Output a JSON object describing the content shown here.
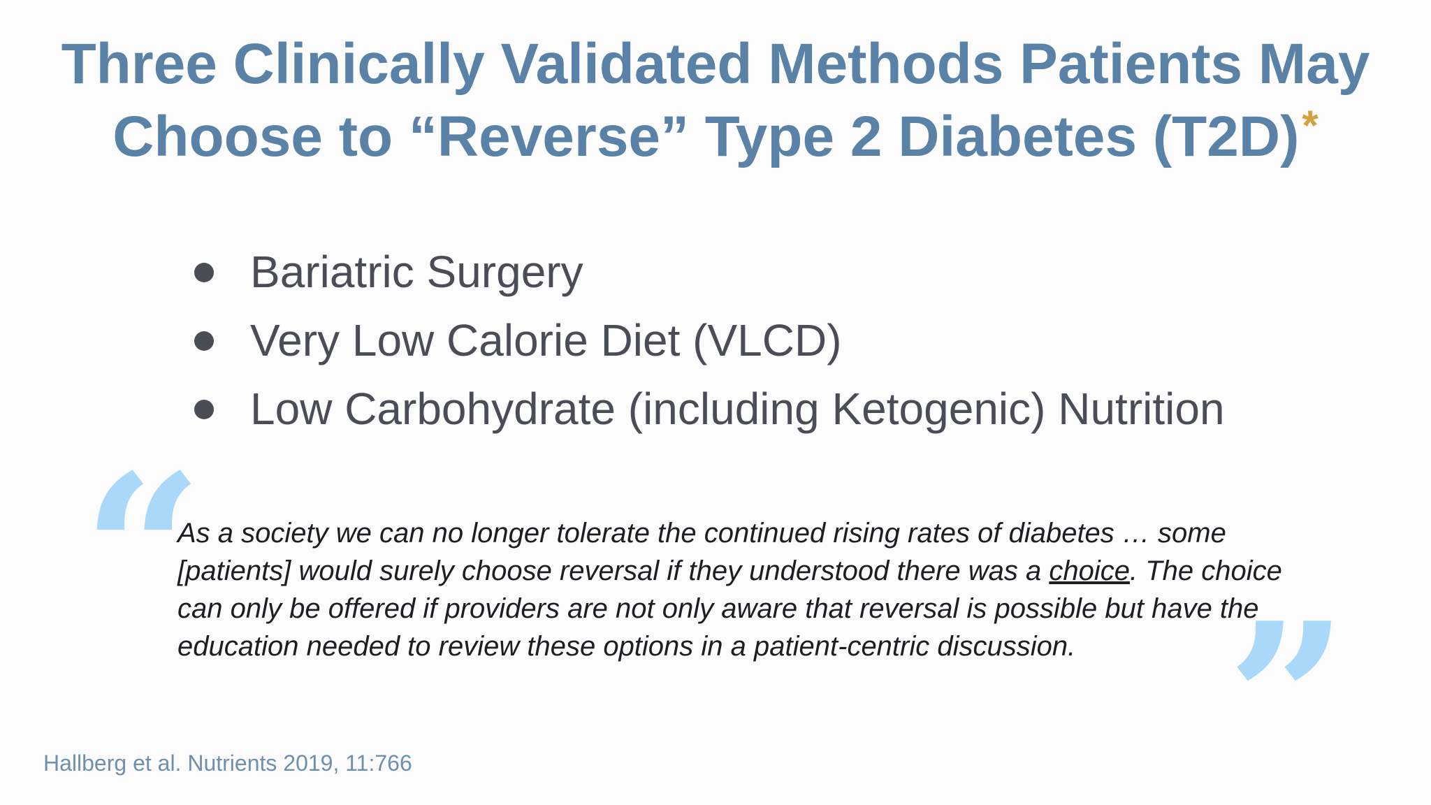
{
  "title": {
    "line1": "Three Clinically Validated Methods Patients May",
    "line2": "Choose to “Reverse” Type 2 Diabetes (T2D)",
    "asterisk": "*"
  },
  "methods": [
    "Bariatric Surgery",
    "Very Low Calorie Diet (VLCD)",
    "Low Carbohydrate (including Ketogenic) Nutrition"
  ],
  "quote": {
    "open_mark": "“",
    "close_mark": "”",
    "before_emphasis": "As a society we can no longer tolerate the continued rising rates of diabetes … some [patients] would surely choose reversal if they understood there was a ",
    "emphasis": "choice",
    "after_emphasis": ". The choice can only be offered if providers are not only aware that reversal is possible but have the education needed to review these options in a patient-centric discussion."
  },
  "citation": "Hallberg et al. Nutrients 2019, 11:766",
  "colors": {
    "title": "#5a82a6",
    "asterisk": "#d4a23c",
    "quote_marks": "#a9d8fb",
    "body_text": "#4a4d55",
    "citation": "#6e8fae"
  }
}
